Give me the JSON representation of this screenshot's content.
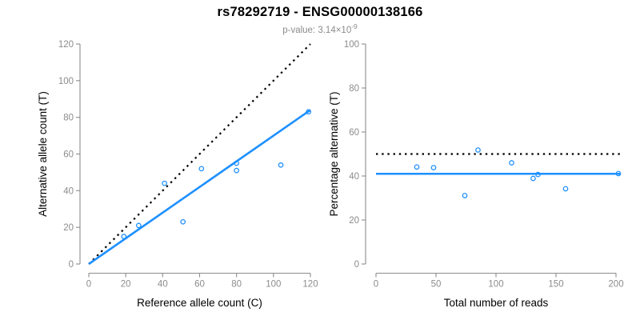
{
  "window": {
    "background": "#ffffff"
  },
  "header": {
    "title": "rs78292719 - ENSG00000138166",
    "p_value_prefix": "p-value: 3.14×10",
    "p_value_exponent": "-9"
  },
  "colors": {
    "accent_blue": "#1E90FF",
    "axis_gray": "#8c8c8c",
    "line_black": "#000000"
  },
  "chart_data": [
    {
      "type": "scatter",
      "title": "rs78292719 - ENSG00000138166",
      "subtitle": "p-value: 3.14×10^-9",
      "xlabel": "Reference allele count (C)",
      "ylabel": "Alternative allele count (T)",
      "xlim": [
        0,
        120
      ],
      "ylim": [
        0,
        120
      ],
      "xticks": [
        0,
        20,
        40,
        60,
        80,
        100,
        120
      ],
      "yticks": [
        0,
        20,
        40,
        60,
        80,
        100,
        120
      ],
      "grid": false,
      "legend": null,
      "point_style": "open-circle",
      "points": [
        [
          19,
          15
        ],
        [
          27,
          21
        ],
        [
          41,
          44
        ],
        [
          51,
          23
        ],
        [
          61,
          52
        ],
        [
          80,
          51
        ],
        [
          80,
          55
        ],
        [
          104,
          54
        ],
        [
          119,
          83
        ]
      ],
      "lines": [
        {
          "name": "identity-line",
          "style": "dotted",
          "color": "#000000",
          "x": [
            0,
            120
          ],
          "y": [
            0,
            120
          ]
        },
        {
          "name": "regression-line",
          "style": "solid",
          "color": "#1E90FF",
          "x": [
            0,
            120
          ],
          "y": [
            0,
            84
          ]
        }
      ]
    },
    {
      "type": "scatter",
      "title": "",
      "xlabel": "Total number of reads",
      "ylabel": "Percentage alternative (T)",
      "xlim": [
        0,
        200
      ],
      "ylim": [
        0,
        100
      ],
      "xticks": [
        0,
        50,
        100,
        150,
        200
      ],
      "yticks": [
        0,
        20,
        40,
        60,
        80,
        100
      ],
      "grid": false,
      "legend": null,
      "point_style": "open-circle",
      "points": [
        [
          34,
          44.1
        ],
        [
          48,
          43.8
        ],
        [
          74,
          31.1
        ],
        [
          85,
          51.8
        ],
        [
          113,
          46.0
        ],
        [
          131,
          38.9
        ],
        [
          135,
          40.7
        ],
        [
          158,
          34.2
        ],
        [
          202,
          41.1
        ]
      ],
      "lines": [
        {
          "name": "fifty-percent-line",
          "style": "dotted",
          "color": "#000000",
          "x": [
            0,
            204
          ],
          "y": [
            50,
            50
          ]
        },
        {
          "name": "mean-percentage-line",
          "style": "solid",
          "color": "#1E90FF",
          "x": [
            0,
            204
          ],
          "y": [
            41,
            41
          ]
        }
      ]
    }
  ]
}
